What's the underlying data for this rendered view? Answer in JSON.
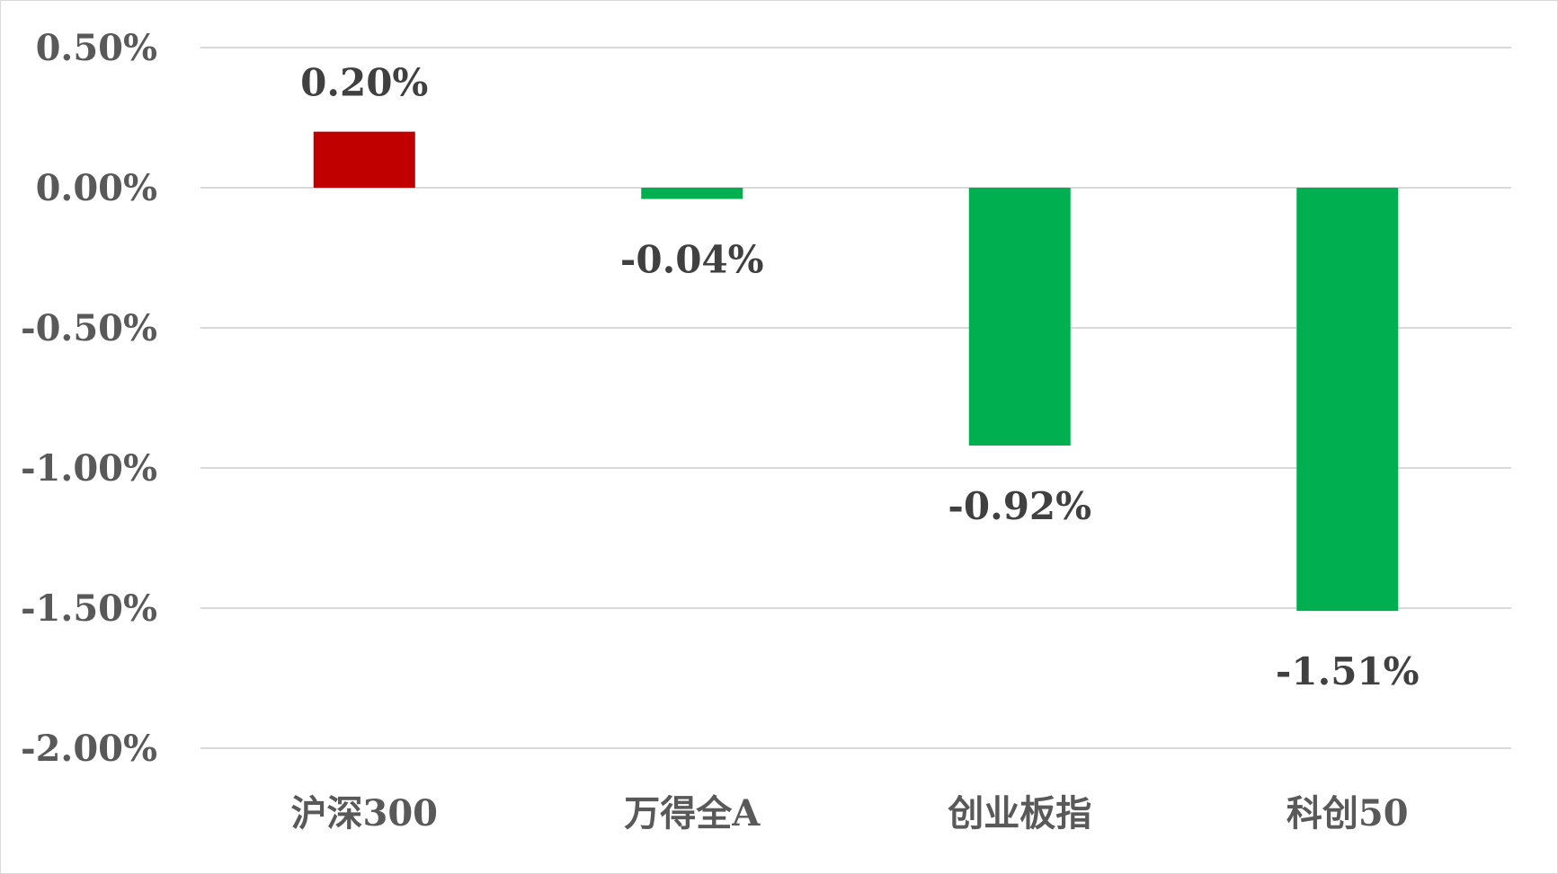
{
  "chart_data": {
    "type": "bar",
    "categories": [
      "沪深300",
      "万得全A",
      "创业板指",
      "科创50"
    ],
    "values": [
      0.2,
      -0.04,
      -0.92,
      -1.51
    ],
    "value_labels": [
      "0.20%",
      "-0.04%",
      "-0.92%",
      "-1.51%"
    ],
    "bar_colors": [
      "#C00000",
      "#00B050",
      "#00B050",
      "#00B050"
    ],
    "ylim": [
      -2.0,
      0.5
    ],
    "yticks": [
      0.5,
      0.0,
      -0.5,
      -1.0,
      -1.5,
      -2.0
    ],
    "ytick_labels": [
      "0.50%",
      "0.00%",
      "-0.50%",
      "-1.00%",
      "-1.50%",
      "-2.00%"
    ],
    "grid": true,
    "legend": false
  }
}
